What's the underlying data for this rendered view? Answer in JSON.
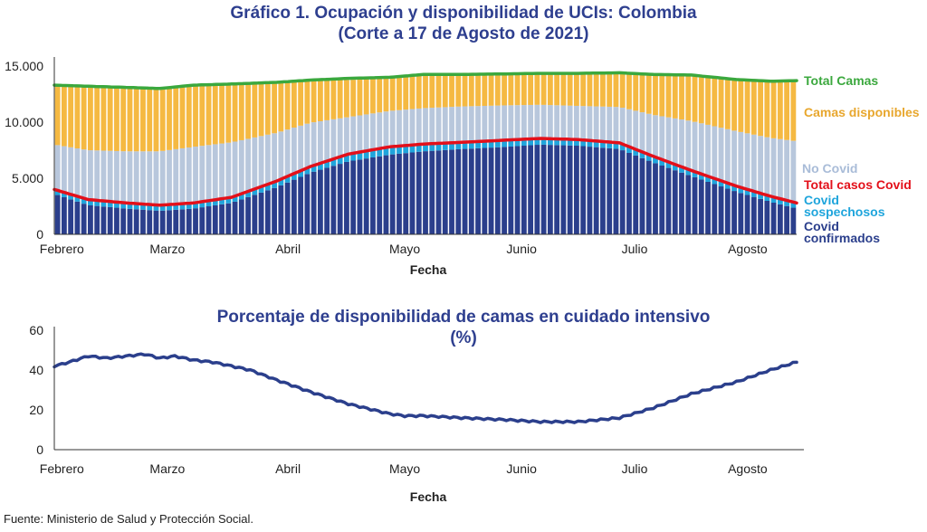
{
  "chart_data": [
    {
      "type": "bar",
      "title": "Gráfico 1. Ocupación y disponibilidad de UCIs: Colombia",
      "subtitle": "(Corte a 17 de Agosto de 2021)",
      "xlabel": "Fecha",
      "ylabel": "",
      "ylim": [
        0,
        15000
      ],
      "y_ticks": [
        "0",
        "5.000",
        "10.000",
        "15.000"
      ],
      "y_tick_values": [
        0,
        5000,
        10000,
        15000
      ],
      "x_ticks": [
        "Febrero",
        "Marzo",
        "Abril",
        "Mayo",
        "Junio",
        "Julio",
        "Agosto"
      ],
      "stacked": true,
      "bar_count": 113,
      "x": [
        "02-01",
        "03-01",
        "04-01",
        "05-01",
        "06-01",
        "07-01",
        "08-01",
        "08-17"
      ],
      "series": [
        {
          "name": "Covid confirmados",
          "kind": "stacked-bar",
          "color": "#2B3F8C",
          "x": [
            "02-01",
            "02-10",
            "02-20",
            "03-01",
            "03-10",
            "03-20",
            "04-01",
            "04-10",
            "04-20",
            "05-01",
            "05-10",
            "05-20",
            "06-01",
            "06-10",
            "06-20",
            "07-01",
            "07-10",
            "07-20",
            "08-01",
            "08-10",
            "08-17"
          ],
          "values": [
            3600,
            2600,
            2300,
            2100,
            2300,
            2800,
            4200,
            5500,
            6500,
            7100,
            7400,
            7600,
            7800,
            8000,
            7900,
            7600,
            6400,
            5200,
            3800,
            2900,
            2300
          ]
        },
        {
          "name": "Covid sospechosos",
          "kind": "stacked-bar",
          "color": "#1FA5DC",
          "x": [
            "02-01",
            "02-10",
            "02-20",
            "03-01",
            "03-10",
            "03-20",
            "04-01",
            "04-10",
            "04-20",
            "05-01",
            "05-10",
            "05-20",
            "06-01",
            "06-10",
            "06-20",
            "07-01",
            "07-10",
            "07-20",
            "08-01",
            "08-10",
            "08-17"
          ],
          "values": [
            400,
            500,
            500,
            500,
            500,
            500,
            550,
            550,
            650,
            700,
            650,
            600,
            600,
            550,
            550,
            550,
            550,
            500,
            500,
            500,
            500
          ]
        },
        {
          "name": "No Covid",
          "kind": "stacked-bar",
          "color": "#B8C7DC",
          "x": [
            "02-01",
            "02-10",
            "02-20",
            "03-01",
            "03-10",
            "03-20",
            "04-01",
            "04-10",
            "04-20",
            "05-01",
            "05-10",
            "05-20",
            "06-01",
            "06-10",
            "06-20",
            "07-01",
            "07-10",
            "07-20",
            "08-01",
            "08-10",
            "08-17"
          ],
          "values": [
            4000,
            4400,
            4600,
            4800,
            5000,
            4900,
            4300,
            3900,
            3300,
            3200,
            3200,
            3200,
            3100,
            3000,
            3000,
            3200,
            3700,
            4400,
            4900,
            5200,
            5500
          ]
        },
        {
          "name": "Camas disponibles",
          "kind": "stacked-bar",
          "color": "#F5B942",
          "x": [
            "02-01",
            "02-10",
            "02-20",
            "03-01",
            "03-10",
            "03-20",
            "04-01",
            "04-10",
            "04-20",
            "05-01",
            "05-10",
            "05-20",
            "06-01",
            "06-10",
            "06-20",
            "07-01",
            "07-10",
            "07-20",
            "08-01",
            "08-10",
            "08-17"
          ],
          "values": [
            5300,
            5700,
            5700,
            5600,
            5500,
            5200,
            4500,
            3800,
            3300,
            3000,
            3000,
            3000,
            2900,
            2800,
            2900,
            3000,
            3600,
            4100,
            4600,
            5100,
            5500
          ]
        },
        {
          "name": "Total casos Covid",
          "kind": "line",
          "color": "#E3101A",
          "x": [
            "02-01",
            "02-10",
            "02-20",
            "03-01",
            "03-10",
            "03-20",
            "04-01",
            "04-10",
            "04-20",
            "05-01",
            "05-10",
            "05-20",
            "06-01",
            "06-10",
            "06-20",
            "07-01",
            "07-10",
            "07-20",
            "08-01",
            "08-10",
            "08-17"
          ],
          "values": [
            4000,
            3100,
            2800,
            2600,
            2800,
            3300,
            4750,
            6050,
            7150,
            7800,
            8050,
            8200,
            8400,
            8550,
            8450,
            8150,
            6950,
            5700,
            4300,
            3400,
            2800
          ]
        },
        {
          "name": "Total Camas",
          "kind": "line",
          "color": "#3BA83E",
          "x": [
            "02-01",
            "02-10",
            "02-20",
            "03-01",
            "03-10",
            "03-20",
            "04-01",
            "04-10",
            "04-20",
            "05-01",
            "05-10",
            "05-20",
            "06-01",
            "06-10",
            "06-20",
            "07-01",
            "07-10",
            "07-20",
            "08-01",
            "08-10",
            "08-17"
          ],
          "values": [
            13300,
            13200,
            13100,
            13000,
            13300,
            13400,
            13550,
            13750,
            13900,
            14000,
            14250,
            14250,
            14300,
            14350,
            14350,
            14400,
            14250,
            14200,
            13800,
            13650,
            13700
          ]
        }
      ]
    },
    {
      "type": "line",
      "title": "Porcentaje de disponibilidad de camas en cuidado intensivo",
      "subtitle": "(%)",
      "xlabel": "Fecha",
      "ylabel": "",
      "ylim": [
        0,
        60
      ],
      "y_ticks": [
        "0",
        "20",
        "40",
        "60"
      ],
      "y_tick_values": [
        0,
        20,
        40,
        60
      ],
      "x_ticks": [
        "Febrero",
        "Marzo",
        "Abril",
        "Mayo",
        "Junio",
        "Julio",
        "Agosto"
      ],
      "series": [
        {
          "name": "",
          "color": "#2B3F8C",
          "x": [
            "02-01",
            "02-05",
            "02-10",
            "02-15",
            "02-20",
            "02-25",
            "03-01",
            "03-05",
            "03-10",
            "03-15",
            "03-20",
            "03-25",
            "04-01",
            "04-10",
            "04-20",
            "05-01",
            "05-05",
            "05-10",
            "05-20",
            "06-01",
            "06-10",
            "06-20",
            "07-01",
            "07-10",
            "07-20",
            "08-01",
            "08-10",
            "08-17"
          ],
          "values": [
            42,
            44,
            47,
            46,
            47,
            48,
            46,
            47,
            45,
            44,
            42,
            40,
            35,
            29,
            23,
            18,
            17,
            17,
            16,
            15,
            14,
            14,
            16,
            21,
            28,
            34,
            40,
            44
          ]
        }
      ]
    }
  ],
  "legend": {
    "total_camas": "Total Camas",
    "camas_disponibles": "Camas disponibles",
    "no_covid": "No Covid",
    "total_casos_covid": "Total casos Covid",
    "covid_sospechosos_1": "Covid",
    "covid_sospechosos_2": "sospechosos",
    "covid_confirmados_1": "Covid",
    "covid_confirmados_2": "confirmados"
  },
  "colors": {
    "title": "#2E3F8F",
    "confirmados": "#2B3F8C",
    "sospechosos": "#1FA5DC",
    "no_covid": "#B8C7DC",
    "disponibles": "#F5B942",
    "total_covid": "#E3101A",
    "total_camas": "#3BA83E"
  },
  "source": "Fuente: Ministerio de Salud y Protección Social."
}
